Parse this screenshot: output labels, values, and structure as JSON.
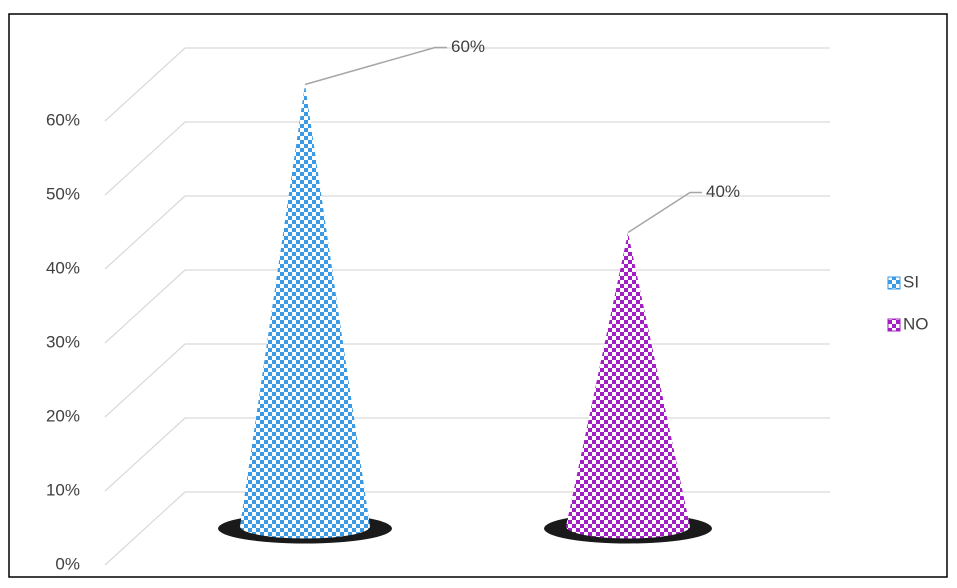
{
  "chart_data": {
    "type": "cone",
    "series": [
      {
        "name": "SI",
        "color": "#3a9ae6",
        "values": [
          60
        ],
        "value_labels": [
          "60%"
        ]
      },
      {
        "name": "NO",
        "color": "#a31fc4",
        "values": [
          40
        ],
        "value_labels": [
          "40%"
        ]
      }
    ],
    "ylim": [
      0,
      60
    ],
    "yticks": [
      {
        "value": 0,
        "label": "0%"
      },
      {
        "value": 10,
        "label": "10%"
      },
      {
        "value": 20,
        "label": "20%"
      },
      {
        "value": 30,
        "label": "30%"
      },
      {
        "value": 40,
        "label": "40%"
      },
      {
        "value": 50,
        "label": "50%"
      },
      {
        "value": 60,
        "label": "60%"
      }
    ],
    "grid": true,
    "legend": "right"
  }
}
